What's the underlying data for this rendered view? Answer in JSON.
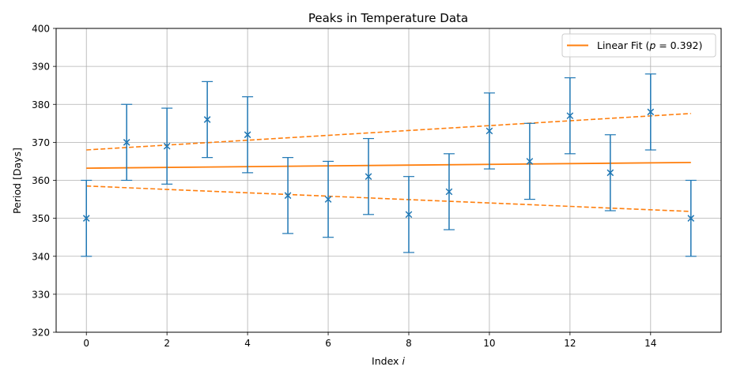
{
  "chart_data": {
    "type": "scatter",
    "title": "Peaks in Temperature Data",
    "xlabel": "Index i",
    "xlabel_parts": {
      "text": "Index",
      "var": "i"
    },
    "ylabel": "Period [Days]",
    "xlim": [
      -0.75,
      15.75
    ],
    "ylim": [
      320,
      400
    ],
    "xticks": [
      0,
      2,
      4,
      6,
      8,
      10,
      12,
      14
    ],
    "yticks": [
      320,
      330,
      340,
      350,
      360,
      370,
      380,
      390,
      400
    ],
    "grid": true,
    "legend_position": "top-right",
    "series": [
      {
        "name": "data",
        "marker": "x",
        "color": "#1f77b4",
        "x": [
          0,
          1,
          2,
          3,
          4,
          5,
          6,
          7,
          8,
          9,
          10,
          11,
          12,
          13,
          14,
          15
        ],
        "y": [
          350,
          370,
          369,
          376,
          372,
          356,
          355,
          361,
          351,
          357,
          373,
          365,
          377,
          362,
          378,
          350
        ],
        "yerr": 10
      }
    ],
    "fit": {
      "name": "Linear Fit",
      "legend": "Linear Fit (p = 0.392)",
      "legend_parts": {
        "prefix": "Linear Fit (",
        "var": "p",
        "suffix": " = 0.392)"
      },
      "color": "#ff7f0e",
      "x": [
        0,
        15
      ],
      "y": [
        363.2,
        364.7
      ],
      "upper_y": [
        368.0,
        377.6
      ],
      "lower_y": [
        358.5,
        351.8
      ]
    }
  }
}
